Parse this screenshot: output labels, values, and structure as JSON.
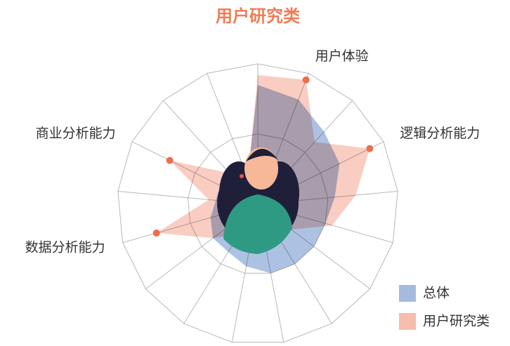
{
  "chart_data": {
    "type": "radar",
    "title": "用户研究类",
    "categories": [
      null,
      "用户体验",
      null,
      "逻辑分析能力",
      null,
      null,
      null,
      null,
      null,
      null,
      null,
      null,
      "数据分析能力",
      null,
      "商业分析能力",
      null,
      null
    ],
    "ylim": [
      0,
      100
    ],
    "yticks": [
      50,
      100
    ],
    "series": [
      {
        "name": "总体",
        "color": "#a4bbdf",
        "values": [
          85,
          80,
          70,
          65,
          55,
          50,
          50,
          50,
          50,
          45,
          40,
          40,
          35,
          30,
          30,
          25,
          20
        ]
      },
      {
        "name": "用户研究类",
        "color": "#f7bcae",
        "values": [
          92,
          95,
          60,
          89,
          70,
          55,
          30,
          20,
          20,
          15,
          25,
          40,
          75,
          35,
          70,
          30,
          20
        ]
      }
    ]
  }
}
